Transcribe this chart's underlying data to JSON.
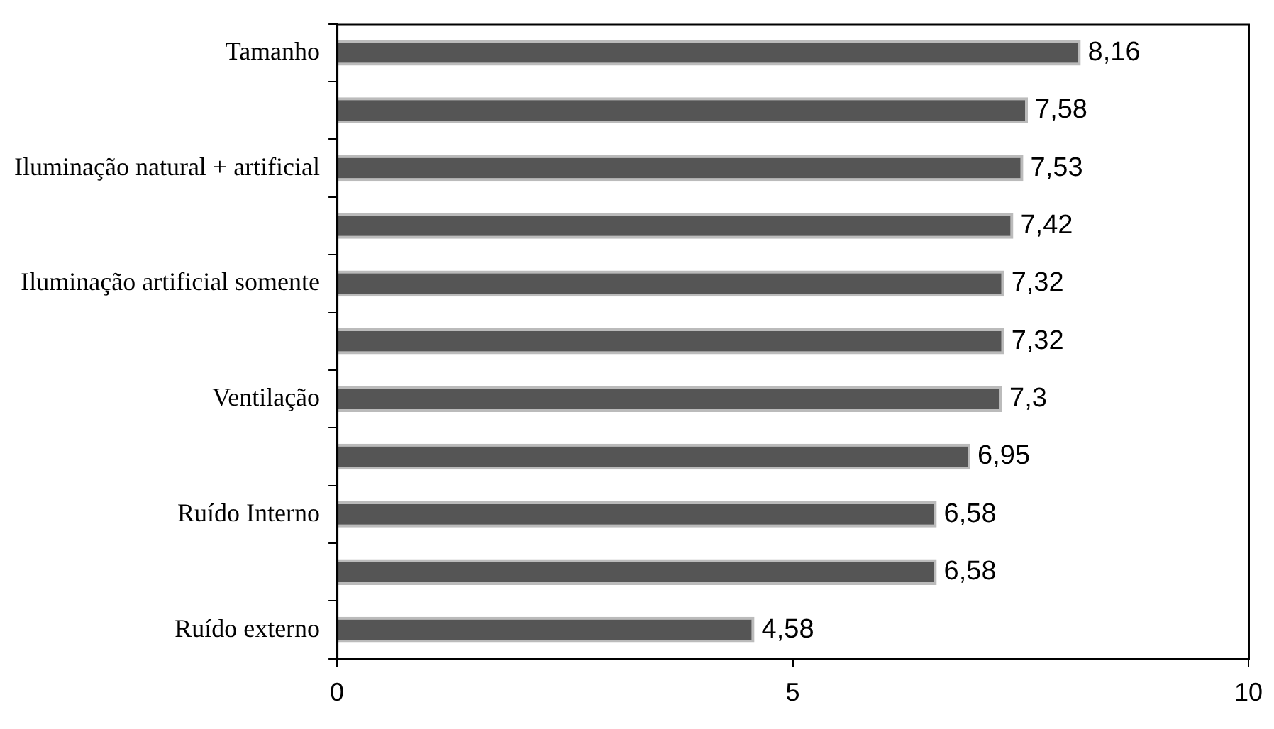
{
  "chart_data": {
    "type": "bar",
    "orientation": "horizontal",
    "categories": [
      "Tamanho",
      null,
      "Iluminação natural + artificial",
      null,
      "Iluminação artificial somente",
      null,
      "Ventilação",
      null,
      "Ruído Interno",
      null,
      "Ruído externo"
    ],
    "values": [
      8.16,
      7.58,
      7.53,
      7.42,
      7.32,
      7.32,
      7.3,
      6.95,
      6.58,
      6.58,
      4.58
    ],
    "value_labels": [
      "8,16",
      "7,58",
      "7,53",
      "7,42",
      "7,32",
      "7,32",
      "7,3",
      "6,95",
      "6,58",
      "6,58",
      "4,58"
    ],
    "color": "#555555",
    "xlim": [
      0,
      10
    ],
    "xticks": [
      0,
      5,
      10
    ],
    "grid": false,
    "legend": false
  }
}
